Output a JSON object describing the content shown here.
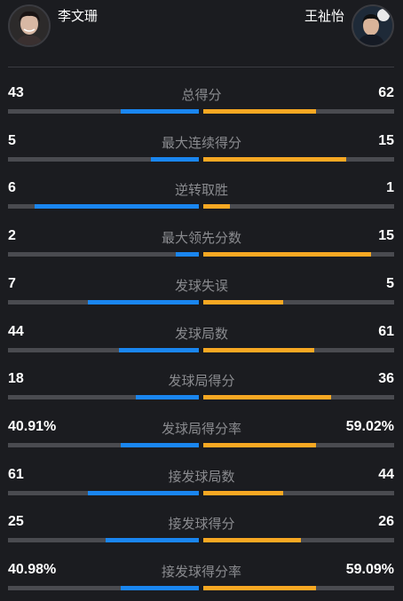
{
  "players": {
    "left": {
      "name": "李文珊",
      "avatar_icon": "player-photo-icon"
    },
    "right": {
      "name": "王祉怡",
      "avatar_icon": "player-photo-icon"
    }
  },
  "colors": {
    "left_bar": "#1a86f0",
    "right_bar": "#f7a823",
    "track": "#4a4b50"
  },
  "stats": [
    {
      "label": "总得分",
      "left": "43",
      "right": "62",
      "left_share": 0.41,
      "right_share": 0.59
    },
    {
      "label": "最大连续得分",
      "left": "5",
      "right": "15",
      "left_share": 0.25,
      "right_share": 0.75
    },
    {
      "label": "逆转取胜",
      "left": "6",
      "right": "1",
      "left_share": 0.86,
      "right_share": 0.14
    },
    {
      "label": "最大领先分数",
      "left": "2",
      "right": "15",
      "left_share": 0.12,
      "right_share": 0.88
    },
    {
      "label": "发球失误",
      "left": "7",
      "right": "5",
      "left_share": 0.58,
      "right_share": 0.42
    },
    {
      "label": "发球局数",
      "left": "44",
      "right": "61",
      "left_share": 0.42,
      "right_share": 0.58
    },
    {
      "label": "发球局得分",
      "left": "18",
      "right": "36",
      "left_share": 0.33,
      "right_share": 0.67
    },
    {
      "label": "发球局得分率",
      "left": "40.91%",
      "right": "59.02%",
      "left_share": 0.41,
      "right_share": 0.59
    },
    {
      "label": "接发球局数",
      "left": "61",
      "right": "44",
      "left_share": 0.58,
      "right_share": 0.42
    },
    {
      "label": "接发球得分",
      "left": "25",
      "right": "26",
      "left_share": 0.49,
      "right_share": 0.51
    },
    {
      "label": "接发球得分率",
      "left": "40.98%",
      "right": "59.09%",
      "left_share": 0.41,
      "right_share": 0.59
    }
  ]
}
